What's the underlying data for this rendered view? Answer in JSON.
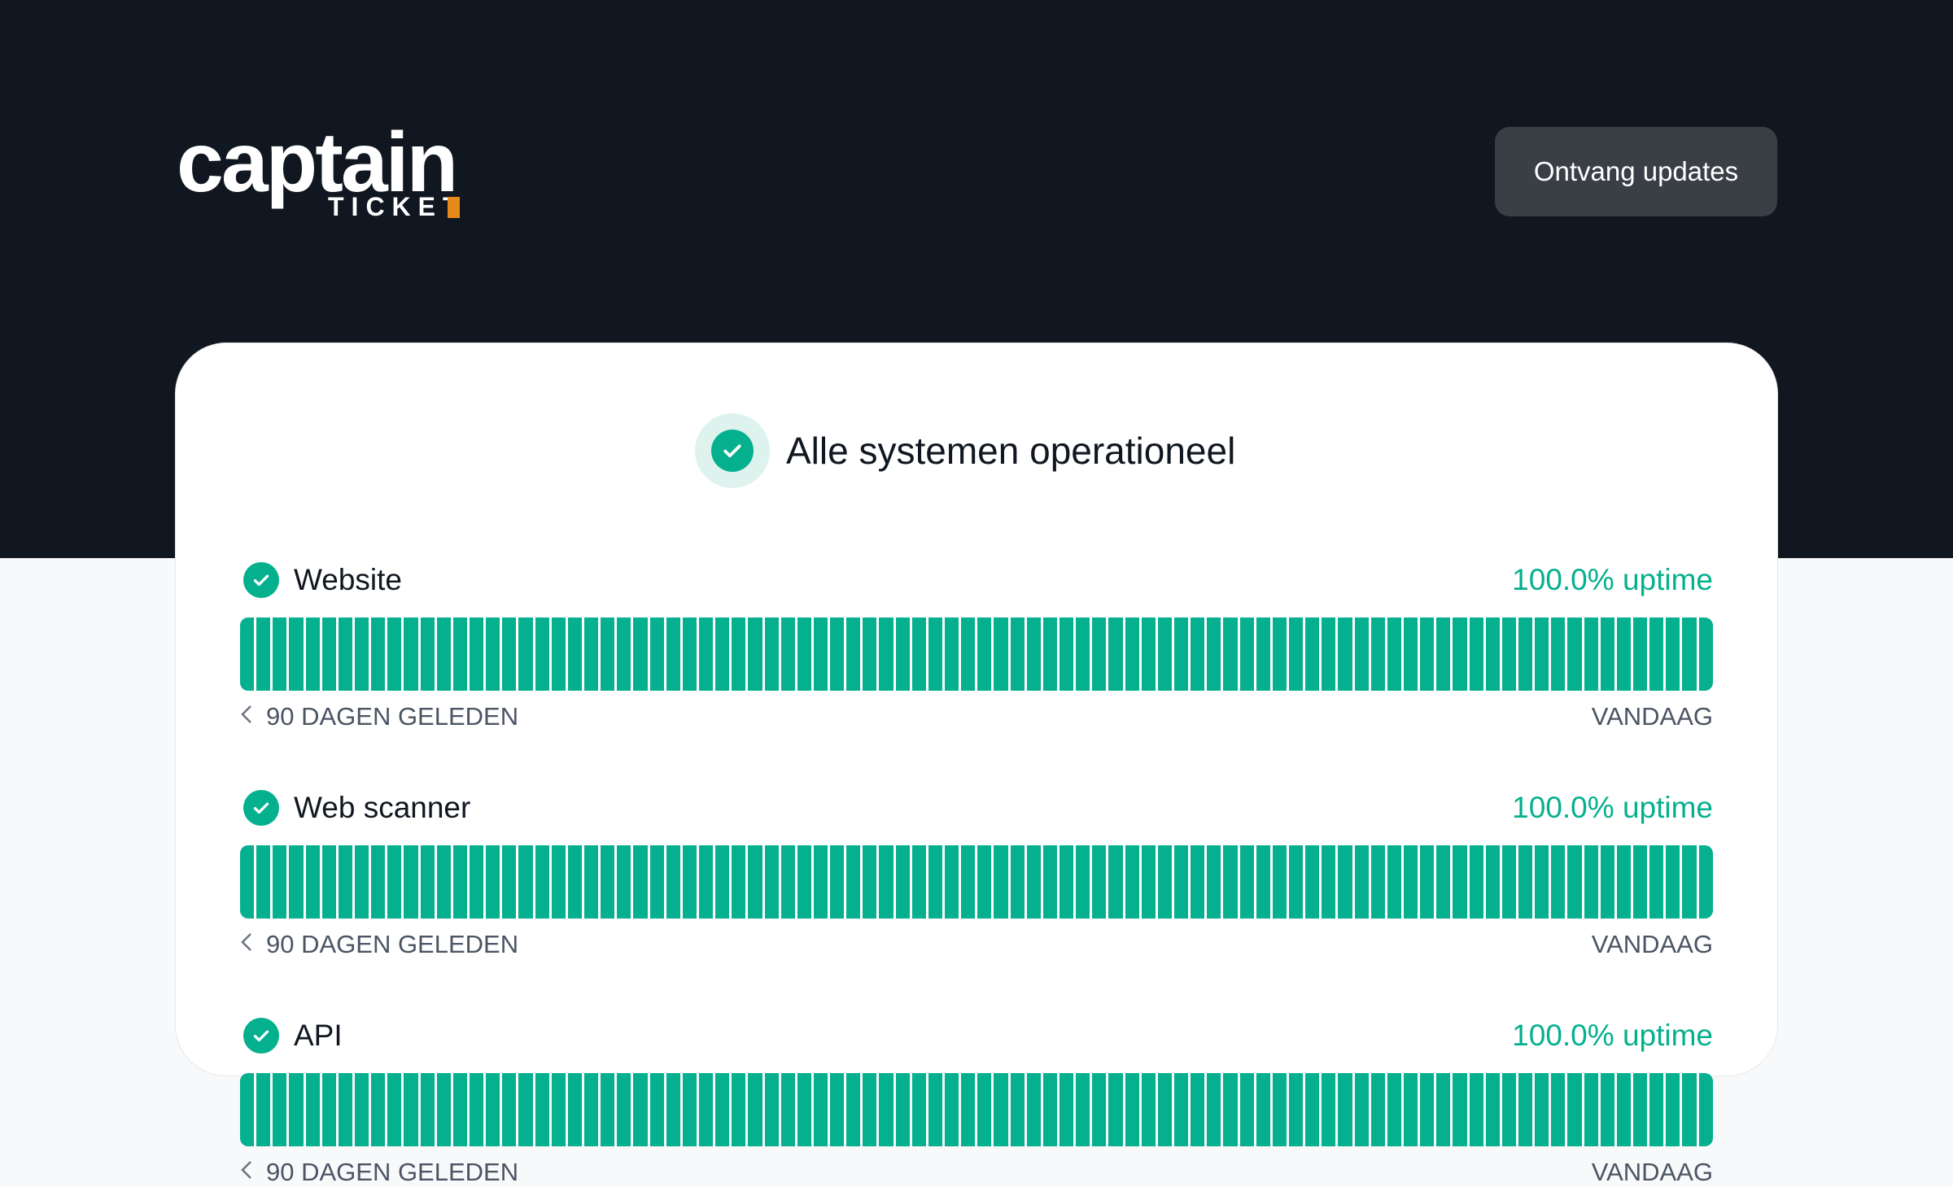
{
  "header": {
    "logo_text": "captain",
    "logo_subtext": "TICKET",
    "subscribe_label": "Ontvang updates",
    "accent": "#e68a1b"
  },
  "status": {
    "title": "Alle systemen operationeel",
    "icon": "check-circle-icon",
    "color": "#05b08e"
  },
  "components": [
    {
      "name": "Website",
      "uptime": "100.0% uptime",
      "days": 90,
      "start_label": "90 DAGEN GELEDEN",
      "end_label": "VANDAAG"
    },
    {
      "name": "Web scanner",
      "uptime": "100.0% uptime",
      "days": 90,
      "start_label": "90 DAGEN GELEDEN",
      "end_label": "VANDAAG"
    },
    {
      "name": "API",
      "uptime": "100.0% uptime",
      "days": 90,
      "start_label": "90 DAGEN GELEDEN",
      "end_label": "VANDAAG"
    }
  ]
}
